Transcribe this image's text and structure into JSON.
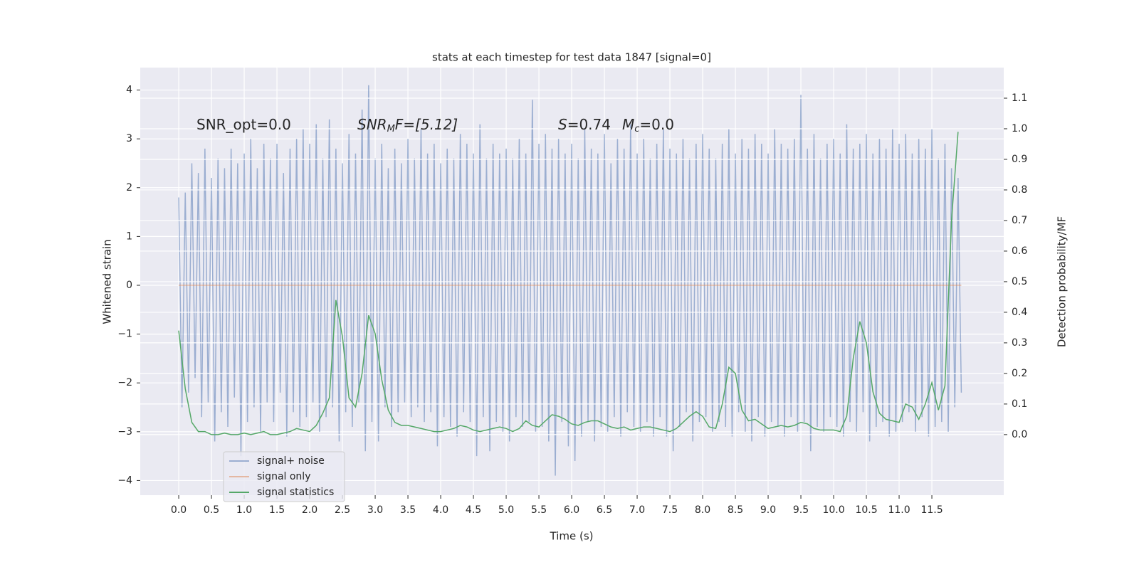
{
  "chart_data": {
    "type": "line",
    "title": "stats at each timestep for test data 1847 [signal=0]",
    "xlabel": "Time (s)",
    "ylabel": "Whitened strain",
    "y2label": "Detection probability/MF",
    "annotations": [
      [
        "SNR_opt=0.0"
      ],
      [
        "SNR",
        "M",
        "F=[5.12]"
      ],
      [
        "S",
        "=0.74",
        "M",
        "c",
        "=0.0"
      ]
    ],
    "grid": true,
    "legend": "lower left",
    "xlim": [
      -0.5875,
      12.5975
    ],
    "ylim": [
      -4.3,
      4.46
    ],
    "y2lim": [
      -0.198,
      1.2
    ],
    "xticks": [
      {
        "value": 0,
        "label": "0.0"
      },
      {
        "value": 0.5,
        "label": "0.5"
      },
      {
        "value": 1,
        "label": "1.0"
      },
      {
        "value": 1.5,
        "label": "1.5"
      },
      {
        "value": 2,
        "label": "2.0"
      },
      {
        "value": 2.5,
        "label": "2.5"
      },
      {
        "value": 3,
        "label": "3.0"
      },
      {
        "value": 3.5,
        "label": "3.5"
      },
      {
        "value": 4,
        "label": "4.0"
      },
      {
        "value": 4.5,
        "label": "4.5"
      },
      {
        "value": 5,
        "label": "5.0"
      },
      {
        "value": 5.5,
        "label": "5.5"
      },
      {
        "value": 6,
        "label": "6.0"
      },
      {
        "value": 6.5,
        "label": "6.5"
      },
      {
        "value": 7,
        "label": "7.0"
      },
      {
        "value": 7.5,
        "label": "7.5"
      },
      {
        "value": 8,
        "label": "8.0"
      },
      {
        "value": 8.5,
        "label": "8.5"
      },
      {
        "value": 9,
        "label": "9.0"
      },
      {
        "value": 9.5,
        "label": "9.5"
      },
      {
        "value": 10,
        "label": "10.0"
      },
      {
        "value": 10.5,
        "label": "10.5"
      },
      {
        "value": 11,
        "label": "11.0"
      },
      {
        "value": 11.5,
        "label": "11.5"
      }
    ],
    "yticks": [
      {
        "value": -4,
        "label": "−4"
      },
      {
        "value": -3,
        "label": "−3"
      },
      {
        "value": -2,
        "label": "−2"
      },
      {
        "value": -1,
        "label": "−1"
      },
      0,
      1,
      2,
      3,
      4
    ],
    "y2ticks": [
      {
        "value": 0,
        "label": "0.0"
      },
      {
        "value": 0.1,
        "label": "0.1"
      },
      {
        "value": 0.2,
        "label": "0.2"
      },
      {
        "value": 0.3,
        "label": "0.3"
      },
      {
        "value": 0.4,
        "label": "0.4"
      },
      {
        "value": 0.5,
        "label": "0.5"
      },
      {
        "value": 0.6,
        "label": "0.6"
      },
      {
        "value": 0.7,
        "label": "0.7"
      },
      {
        "value": 0.8,
        "label": "0.8"
      },
      {
        "value": 0.9,
        "label": "0.9"
      },
      {
        "value": 1,
        "label": "1.0"
      },
      {
        "value": 1.1,
        "label": "1.1"
      }
    ],
    "series": [
      {
        "name": "signal+ noise",
        "color": "#4c72b0",
        "opacity": 0.5,
        "x": [
          0,
          0.05,
          0.1,
          0.15,
          0.2,
          0.25,
          0.3,
          0.35,
          0.4,
          0.45,
          0.5,
          0.55,
          0.6,
          0.65,
          0.7,
          0.75,
          0.8,
          0.85,
          0.9,
          0.95,
          1,
          1.05,
          1.1,
          1.15,
          1.2,
          1.25,
          1.3,
          1.35,
          1.4,
          1.45,
          1.5,
          1.55,
          1.6,
          1.65,
          1.7,
          1.75,
          1.8,
          1.85,
          1.9,
          1.95,
          2,
          2.05,
          2.1,
          2.15,
          2.2,
          2.25,
          2.3,
          2.35,
          2.4,
          2.45,
          2.5,
          2.55,
          2.6,
          2.65,
          2.7,
          2.75,
          2.8,
          2.85,
          2.9,
          2.95,
          3,
          3.05,
          3.1,
          3.15,
          3.2,
          3.25,
          3.3,
          3.35,
          3.4,
          3.45,
          3.5,
          3.55,
          3.6,
          3.65,
          3.7,
          3.75,
          3.8,
          3.85,
          3.9,
          3.95,
          4,
          4.05,
          4.1,
          4.15,
          4.2,
          4.25,
          4.3,
          4.35,
          4.4,
          4.45,
          4.5,
          4.55,
          4.6,
          4.65,
          4.7,
          4.75,
          4.8,
          4.85,
          4.9,
          4.95,
          5,
          5.05,
          5.1,
          5.15,
          5.2,
          5.25,
          5.3,
          5.35,
          5.4,
          5.45,
          5.5,
          5.55,
          5.6,
          5.65,
          5.7,
          5.75,
          5.8,
          5.85,
          5.9,
          5.95,
          6,
          6.05,
          6.1,
          6.15,
          6.2,
          6.25,
          6.3,
          6.35,
          6.4,
          6.45,
          6.5,
          6.55,
          6.6,
          6.65,
          6.7,
          6.75,
          6.8,
          6.85,
          6.9,
          6.95,
          7,
          7.05,
          7.1,
          7.15,
          7.2,
          7.25,
          7.3,
          7.35,
          7.4,
          7.45,
          7.5,
          7.55,
          7.6,
          7.65,
          7.7,
          7.75,
          7.8,
          7.85,
          7.9,
          7.95,
          8,
          8.05,
          8.1,
          8.15,
          8.2,
          8.25,
          8.3,
          8.35,
          8.4,
          8.45,
          8.5,
          8.55,
          8.6,
          8.65,
          8.7,
          8.75,
          8.8,
          8.85,
          8.9,
          8.95,
          9,
          9.05,
          9.1,
          9.15,
          9.2,
          9.25,
          9.3,
          9.35,
          9.4,
          9.45,
          9.5,
          9.55,
          9.6,
          9.65,
          9.7,
          9.75,
          9.8,
          9.85,
          9.9,
          9.95,
          10,
          10.05,
          10.1,
          10.15,
          10.2,
          10.25,
          10.3,
          10.35,
          10.4,
          10.45,
          10.5,
          10.55,
          10.6,
          10.65,
          10.7,
          10.75,
          10.8,
          10.85,
          10.9,
          10.95,
          11,
          11.05,
          11.1,
          11.15,
          11.2,
          11.25,
          11.3,
          11.35,
          11.4,
          11.45,
          11.5,
          11.55,
          11.6,
          11.65,
          11.7,
          11.75,
          11.8,
          11.85,
          11.9,
          11.95
        ],
        "values": [
          1.8,
          -2.5,
          1.9,
          -2.2,
          2.5,
          -1.9,
          2.3,
          -2.7,
          2.8,
          -2.4,
          2.2,
          -3.2,
          2.6,
          -2.6,
          2.4,
          -2.9,
          2.8,
          -2.3,
          2.5,
          -3.5,
          2.7,
          -2.8,
          3.0,
          -2.5,
          2.4,
          -3.0,
          2.9,
          -2.4,
          2.6,
          -2.8,
          2.9,
          -2.2,
          2.3,
          -3.1,
          2.8,
          -2.6,
          3.0,
          -2.9,
          3.2,
          -2.7,
          2.9,
          -2.4,
          3.3,
          -3.0,
          2.6,
          -2.7,
          3.4,
          -2.5,
          2.8,
          -3.2,
          2.5,
          -2.6,
          3.1,
          -2.9,
          2.7,
          -2.4,
          3.6,
          -3.4,
          4.1,
          -2.8,
          2.6,
          -3.2,
          2.9,
          -2.5,
          2.4,
          -2.9,
          2.8,
          -2.6,
          2.5,
          -2.4,
          3.0,
          -2.7,
          2.6,
          -2.5,
          3.2,
          -2.8,
          2.7,
          -2.6,
          2.9,
          -3.3,
          2.5,
          -2.7,
          2.8,
          -2.9,
          2.6,
          -3.1,
          3.1,
          -2.6,
          2.9,
          -2.8,
          2.7,
          -3.5,
          3.3,
          -2.7,
          2.6,
          -3.4,
          2.9,
          -2.8,
          2.7,
          -3.0,
          2.8,
          -3.2,
          2.6,
          -2.7,
          3.0,
          -2.9,
          2.7,
          -2.8,
          3.8,
          -3.0,
          2.9,
          -2.9,
          3.1,
          -3.2,
          2.8,
          -3.9,
          3.0,
          -2.8,
          2.7,
          -3.3,
          2.9,
          -3.6,
          2.6,
          -3.1,
          3.2,
          -2.8,
          2.8,
          -3.2,
          2.7,
          -2.9,
          3.1,
          -3.0,
          2.5,
          -2.7,
          3.0,
          -3.1,
          2.8,
          -2.6,
          3.3,
          -2.9,
          2.7,
          -3.0,
          3.0,
          -2.8,
          2.6,
          -3.1,
          2.9,
          -2.7,
          3.2,
          -3.1,
          2.8,
          -3.4,
          2.7,
          -2.9,
          3.0,
          -2.6,
          2.6,
          -3.2,
          2.9,
          -2.8,
          3.1,
          -2.7,
          2.8,
          -3.0,
          2.6,
          -2.8,
          2.9,
          -2.9,
          3.2,
          -3.1,
          2.7,
          -2.6,
          3.0,
          -3.0,
          2.8,
          -3.2,
          3.1,
          -2.7,
          2.9,
          -3.1,
          2.7,
          -2.8,
          3.2,
          -2.9,
          2.9,
          -3.1,
          2.8,
          -2.7,
          3.0,
          -3.0,
          3.9,
          -2.8,
          2.8,
          -3.4,
          3.1,
          -2.9,
          2.6,
          -3.0,
          2.9,
          -2.7,
          3.0,
          -2.9,
          2.7,
          -3.1,
          3.3,
          -2.8,
          2.8,
          -3.0,
          2.9,
          -2.6,
          3.1,
          -3.2,
          2.7,
          -2.9,
          3.0,
          -2.8,
          2.8,
          -3.1,
          3.2,
          -3.0,
          2.9,
          -2.8,
          3.1,
          -2.6,
          2.7,
          -3.0,
          3.0,
          -2.7,
          2.8,
          -3.1,
          3.2,
          -2.9,
          2.6,
          -2.8,
          2.9,
          -3.0,
          2.4,
          -2.5,
          2.2,
          -2.2
        ]
      },
      {
        "name": "signal only",
        "color": "#dd8452",
        "opacity": 0.5,
        "x": [
          0,
          11.95
        ],
        "values": [
          0,
          0
        ]
      },
      {
        "name": "signal statistics",
        "color": "#55a868",
        "opacity": 1,
        "axis": "y2",
        "x": [
          0,
          0.1,
          0.2,
          0.3,
          0.4,
          0.5,
          0.6,
          0.7,
          0.8,
          0.9,
          1,
          1.1,
          1.2,
          1.3,
          1.4,
          1.5,
          1.6,
          1.7,
          1.8,
          1.9,
          2,
          2.1,
          2.2,
          2.3,
          2.4,
          2.5,
          2.6,
          2.7,
          2.8,
          2.9,
          3,
          3.1,
          3.2,
          3.3,
          3.4,
          3.5,
          3.6,
          3.7,
          3.8,
          3.9,
          4,
          4.1,
          4.2,
          4.3,
          4.4,
          4.5,
          4.6,
          4.7,
          4.8,
          4.9,
          5,
          5.1,
          5.2,
          5.3,
          5.4,
          5.5,
          5.6,
          5.7,
          5.8,
          5.9,
          6,
          6.1,
          6.2,
          6.3,
          6.4,
          6.5,
          6.6,
          6.7,
          6.8,
          6.9,
          7,
          7.1,
          7.2,
          7.3,
          7.4,
          7.5,
          7.6,
          7.7,
          7.8,
          7.9,
          8,
          8.1,
          8.2,
          8.3,
          8.4,
          8.5,
          8.6,
          8.7,
          8.8,
          8.9,
          9,
          9.1,
          9.2,
          9.3,
          9.4,
          9.5,
          9.6,
          9.7,
          9.8,
          9.9,
          10,
          10.1,
          10.2,
          10.3,
          10.4,
          10.5,
          10.6,
          10.7,
          10.8,
          10.9,
          11,
          11.1,
          11.2,
          11.3,
          11.4,
          11.5,
          11.6,
          11.7,
          11.8,
          11.9
        ],
        "values": [
          0.34,
          0.15,
          0.04,
          0.01,
          0.01,
          0.0,
          0.0,
          0.005,
          0.0,
          0.0,
          0.005,
          0.0,
          0.005,
          0.01,
          0.0,
          0.0,
          0.005,
          0.01,
          0.02,
          0.015,
          0.01,
          0.03,
          0.07,
          0.12,
          0.44,
          0.32,
          0.12,
          0.09,
          0.2,
          0.39,
          0.33,
          0.18,
          0.08,
          0.04,
          0.03,
          0.03,
          0.025,
          0.02,
          0.015,
          0.01,
          0.01,
          0.015,
          0.02,
          0.03,
          0.025,
          0.015,
          0.01,
          0.015,
          0.02,
          0.025,
          0.02,
          0.01,
          0.02,
          0.045,
          0.03,
          0.025,
          0.045,
          0.065,
          0.06,
          0.05,
          0.035,
          0.03,
          0.04,
          0.045,
          0.045,
          0.035,
          0.025,
          0.02,
          0.025,
          0.015,
          0.02,
          0.025,
          0.025,
          0.02,
          0.015,
          0.01,
          0.02,
          0.04,
          0.06,
          0.075,
          0.06,
          0.025,
          0.02,
          0.1,
          0.22,
          0.2,
          0.08,
          0.045,
          0.05,
          0.035,
          0.02,
          0.025,
          0.03,
          0.025,
          0.03,
          0.04,
          0.035,
          0.02,
          0.015,
          0.015,
          0.015,
          0.01,
          0.06,
          0.25,
          0.37,
          0.3,
          0.14,
          0.07,
          0.05,
          0.045,
          0.04,
          0.1,
          0.09,
          0.05,
          0.1,
          0.17,
          0.08,
          0.16,
          0.7,
          0.99
        ]
      }
    ]
  }
}
